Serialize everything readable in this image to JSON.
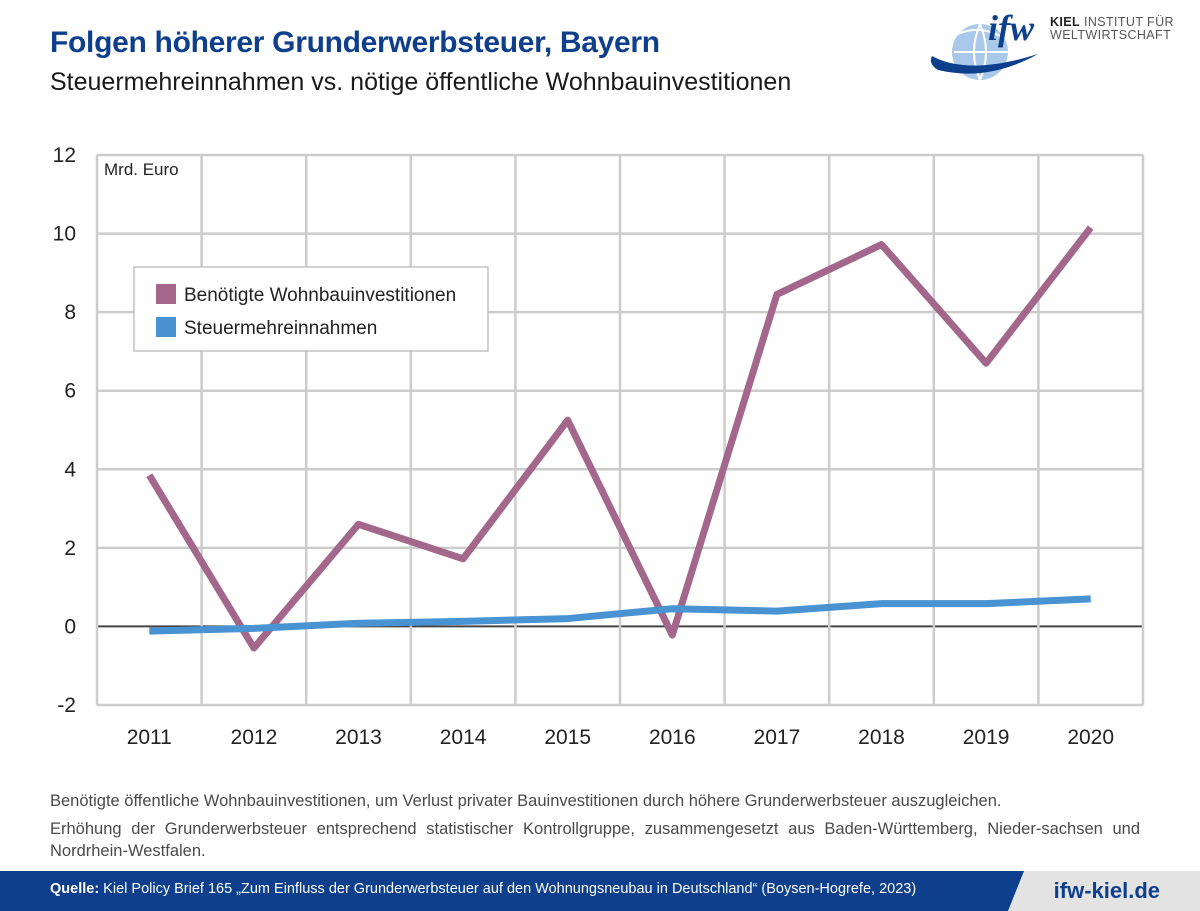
{
  "header": {
    "title": "Folgen höherer Grunderwerbsteuer, Bayern",
    "subtitle": "Steuermehreinnahmen vs. nötige öffentliche Wohnbauinvestitionen"
  },
  "logo": {
    "mark": "ifw",
    "line1": "KIEL",
    "line1_rest": "INSTITUT FÜR",
    "line2": "WELTWIRTSCHAFT",
    "icon": "globe-swoosh-icon"
  },
  "chart_data": {
    "type": "line",
    "unit_label": "Mrd. Euro",
    "x": [
      "2011",
      "2012",
      "2013",
      "2014",
      "2015",
      "2016",
      "2017",
      "2018",
      "2019",
      "2020"
    ],
    "ylim": [
      -2,
      12
    ],
    "yticks": [
      -2,
      0,
      2,
      4,
      6,
      8,
      10,
      12
    ],
    "grid": true,
    "legend_position": "top-left",
    "series": [
      {
        "name": "Benötigte Wohnbauinvestitionen",
        "color": "#a3678c",
        "values": [
          3.85,
          -0.55,
          2.6,
          1.72,
          5.25,
          -0.22,
          8.45,
          9.72,
          6.7,
          10.15
        ]
      },
      {
        "name": "Steuermehreinnahmen",
        "color": "#4a93d2",
        "values": [
          -0.12,
          -0.05,
          0.08,
          0.13,
          0.2,
          0.45,
          0.39,
          0.58,
          0.58,
          0.7
        ]
      }
    ]
  },
  "notes": {
    "line1": "Benötigte öffentliche Wohnbauinvestitionen, um Verlust privater Bauinvestitionen durch höhere Grunderwerbsteuer auszugleichen.",
    "line2": "Erhöhung der Grunderwerbsteuer entsprechend statistischer Kontrollgruppe, zusammengesetzt aus Baden-Württemberg, Nieder-sachsen und Nordrhein-Westfalen."
  },
  "footer": {
    "source_label": "Quelle:",
    "source_text": " Kiel Policy Brief 165 „Zum Einfluss der Grunderwerbsteuer auf den Wohnungsneubau in Deutschland“ (Boysen-Hogrefe, 2023)",
    "website": "ifw-kiel.de"
  }
}
